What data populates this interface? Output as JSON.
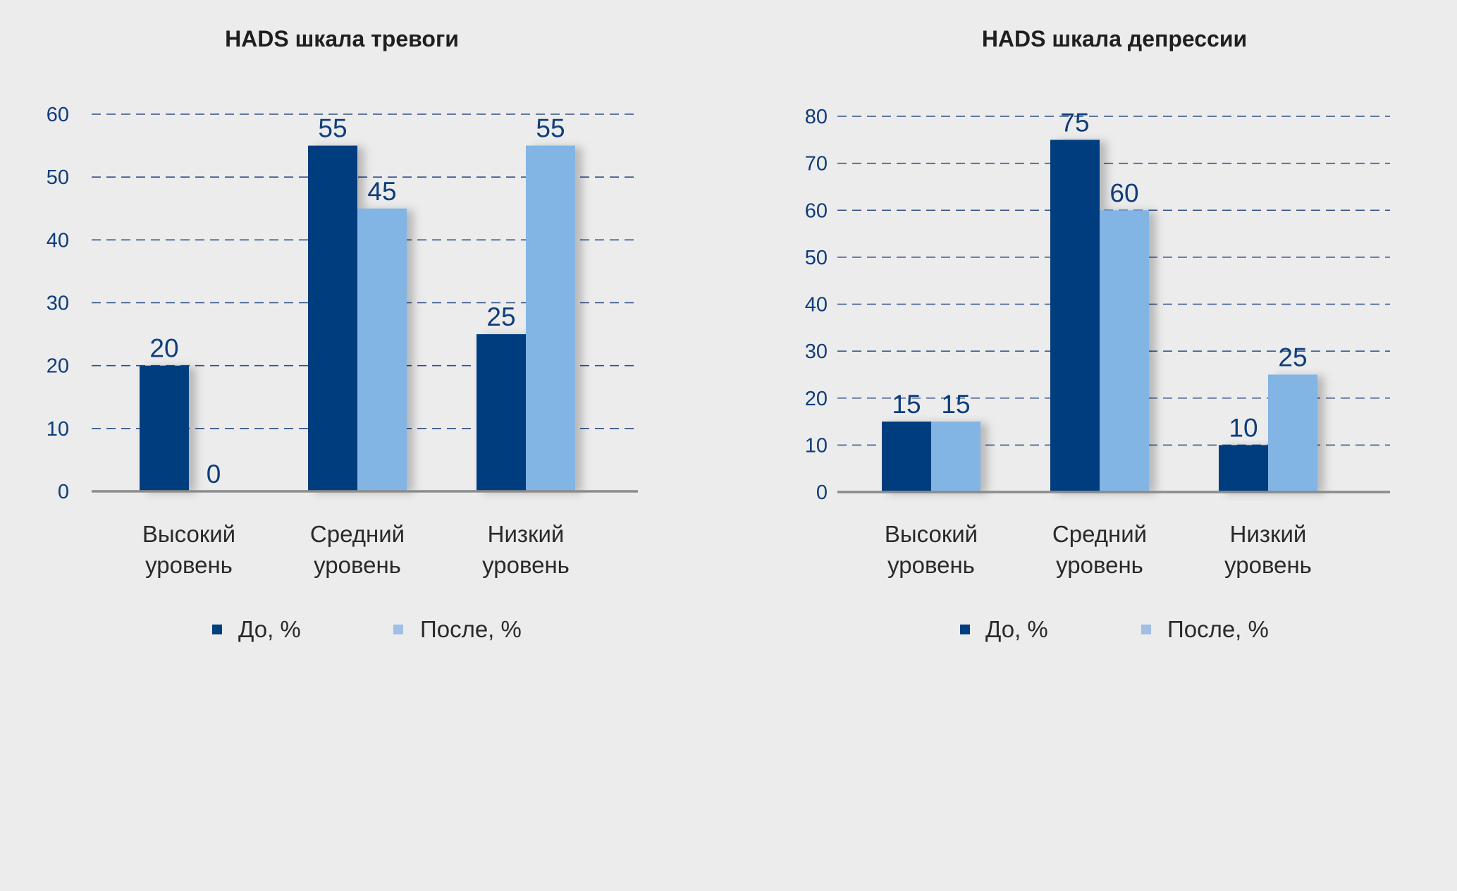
{
  "colors": {
    "before": "#003e7e",
    "after": "#82b4e4",
    "grid": "#2f4f86",
    "axis": "#8c8c8c",
    "legend_after": "#9fbfe6"
  },
  "chart_data": [
    {
      "type": "bar",
      "title": "HADS шкала тревоги",
      "categories": [
        [
          "Высокий",
          "уровень"
        ],
        [
          "Средний",
          "уровень"
        ],
        [
          "Низкий",
          "уровень"
        ]
      ],
      "series": [
        {
          "name": "До, %",
          "values": [
            20,
            55,
            25
          ]
        },
        {
          "name": "После, %",
          "values": [
            0,
            45,
            55
          ]
        }
      ],
      "ylim": [
        0,
        60
      ],
      "yticks": [
        0,
        10,
        20,
        30,
        40,
        50,
        60
      ],
      "grid": true,
      "legend": "bottom"
    },
    {
      "type": "bar",
      "title": "HADS шкала депрессии",
      "categories": [
        [
          "Высокий",
          "уровень"
        ],
        [
          "Средний",
          "уровень"
        ],
        [
          "Низкий",
          "уровень"
        ]
      ],
      "series": [
        {
          "name": "До, %",
          "values": [
            15,
            75,
            10
          ]
        },
        {
          "name": "После, %",
          "values": [
            15,
            60,
            25
          ]
        }
      ],
      "ylim": [
        0,
        80
      ],
      "yticks": [
        0,
        10,
        20,
        30,
        40,
        50,
        60,
        70,
        80
      ],
      "grid": true,
      "legend": "bottom"
    }
  ]
}
